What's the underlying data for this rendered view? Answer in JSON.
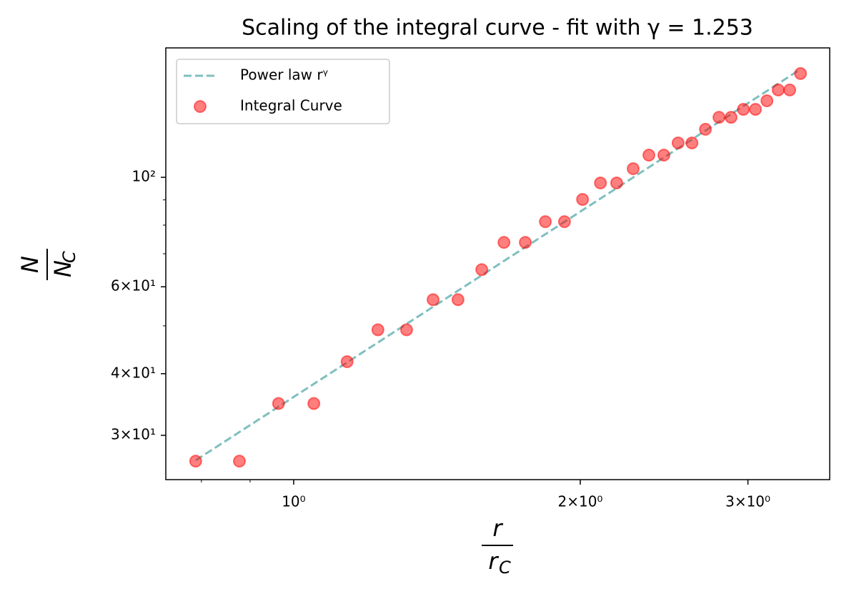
{
  "chart_data": {
    "type": "scatter",
    "title": "Scaling of the integral curve - fit with γ =  1.253",
    "xlabel": {
      "numerator": "r",
      "denominator": "r",
      "subscript": "C"
    },
    "ylabel": {
      "numerator": "N",
      "denominator": "N",
      "subscript": "C"
    },
    "xscale": "log",
    "yscale": "log",
    "xlim": [
      0.734,
      3.656
    ],
    "ylim": [
      24.4,
      182.9
    ],
    "xticks": [
      {
        "value": 1,
        "label": "10⁰"
      },
      {
        "value": 2,
        "label": "2×10⁰"
      },
      {
        "value": 3,
        "label": "3×10⁰"
      }
    ],
    "xminor_ticks": [
      0.8,
      0.9
    ],
    "yticks": [
      {
        "value": 30,
        "label": "3×10¹"
      },
      {
        "value": 40,
        "label": "4×10¹"
      },
      {
        "value": 60,
        "label": "6×10¹"
      },
      {
        "value": 100,
        "label": "10²"
      }
    ],
    "yminor_ticks": [
      50,
      70,
      80,
      90
    ],
    "legend": "upper left",
    "series": [
      {
        "name": "Power law rᵞ",
        "kind": "line",
        "color": "#7fbfbf",
        "x": [
          0.789,
          3.407
        ],
        "values": [
          26.7,
          165.6
        ]
      },
      {
        "name": "Integral Curve",
        "kind": "points",
        "color": "#ff0000",
        "x": [
          0.789,
          0.877,
          0.964,
          1.05,
          1.138,
          1.226,
          1.314,
          1.401,
          1.488,
          1.576,
          1.663,
          1.751,
          1.838,
          1.925,
          2.011,
          2.1,
          2.184,
          2.273,
          2.361,
          2.448,
          2.534,
          2.62,
          2.707,
          2.797,
          2.88,
          2.967,
          3.055,
          3.141,
          3.228,
          3.319,
          3.407
        ],
        "values": [
          26.6,
          26.6,
          34.8,
          34.8,
          42.3,
          49.1,
          49.1,
          56.5,
          56.5,
          65.0,
          73.8,
          73.8,
          81.3,
          81.3,
          90.2,
          97.4,
          97.4,
          104.1,
          110.9,
          110.9,
          117.4,
          117.4,
          125.1,
          132.3,
          132.3,
          137.3,
          137.3,
          142.9,
          150.3,
          150.3,
          162.3
        ]
      }
    ]
  }
}
